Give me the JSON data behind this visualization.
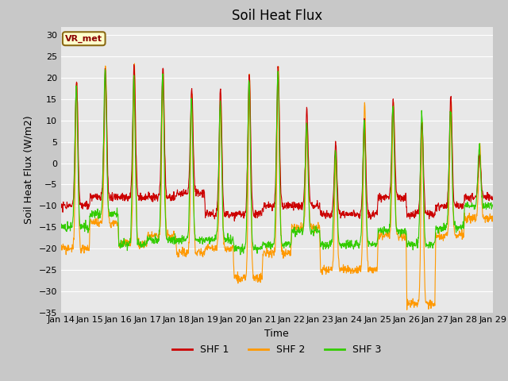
{
  "title": "Soil Heat Flux",
  "ylabel": "Soil Heat Flux (W/m2)",
  "xlabel": "Time",
  "ylim": [
    -35,
    32
  ],
  "yticks": [
    -35,
    -30,
    -25,
    -20,
    -15,
    -10,
    -5,
    0,
    5,
    10,
    15,
    20,
    25,
    30
  ],
  "xtick_labels": [
    "Jan 14",
    "Jan 15",
    "Jan 16",
    "Jan 17",
    "Jan 18",
    "Jan 19",
    "Jan 20",
    "Jan 21",
    "Jan 22",
    "Jan 23",
    "Jan 24",
    "Jan 25",
    "Jan 26",
    "Jan 27",
    "Jan 28",
    "Jan 29"
  ],
  "colors": {
    "SHF 1": "#cc0000",
    "SHF 2": "#ff9900",
    "SHF 3": "#33cc00"
  },
  "legend_labels": [
    "SHF 1",
    "SHF 2",
    "SHF 3"
  ],
  "annotation_text": "VR_met",
  "background_color": "#e8e8e8",
  "grid_color": "#ffffff",
  "fig_facecolor": "#c8c8c8",
  "title_fontsize": 12,
  "label_fontsize": 9,
  "tick_fontsize": 8
}
